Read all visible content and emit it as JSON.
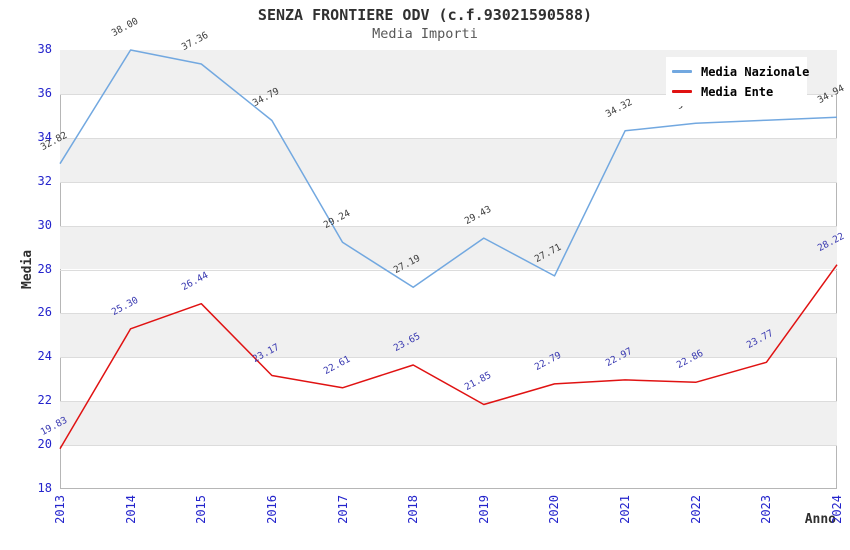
{
  "chart_data": {
    "type": "line",
    "title": "SENZA FRONTIERE ODV (c.f.93021590588)",
    "subtitle": "Media Importi",
    "xlabel": "Anno",
    "ylabel": "Media",
    "x": [
      "2013",
      "2014",
      "2015",
      "2016",
      "2017",
      "2018",
      "2019",
      "2020",
      "2021",
      "2022",
      "2023",
      "2024"
    ],
    "series": [
      {
        "name": "Media Nazionale",
        "color": "#72a8e0",
        "label_color": "#3c3c3c",
        "values": [
          32.82,
          38.0,
          37.36,
          34.79,
          29.24,
          27.19,
          29.43,
          27.71,
          34.32,
          34.66,
          34.8,
          34.94
        ]
      },
      {
        "name": "Media Ente",
        "color": "#e01212",
        "label_color": "#3838b0",
        "values": [
          19.83,
          25.3,
          26.44,
          23.17,
          22.61,
          23.65,
          21.85,
          22.79,
          22.97,
          22.86,
          23.77,
          28.22
        ]
      }
    ],
    "ylim": [
      18,
      38
    ],
    "yticks": [
      18,
      20,
      22,
      24,
      26,
      28,
      30,
      32,
      34,
      36,
      38
    ],
    "grid": true,
    "band_color": "#f0f0f0",
    "tick_color": "#2424cc",
    "legend_position": "top-right"
  }
}
